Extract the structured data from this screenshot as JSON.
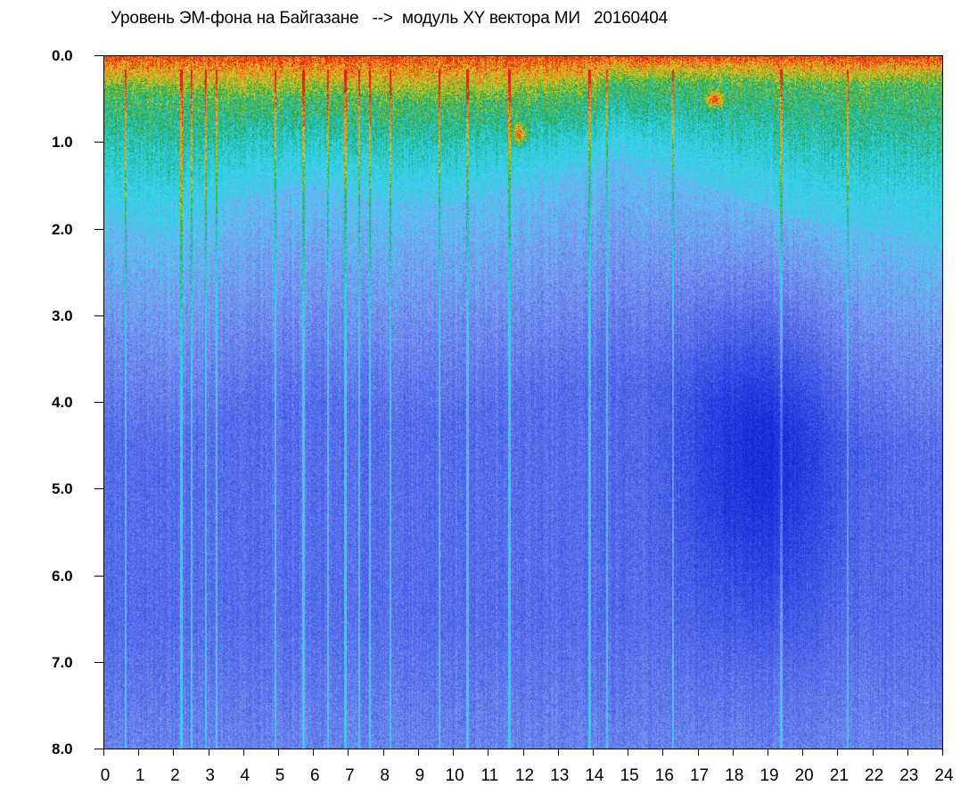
{
  "chart_data": {
    "type": "heatmap",
    "title": "Уровень ЭМ-фона на Байгазане   -->  модуль XY вектора МИ   20160404",
    "xlabel": "",
    "ylabel": "",
    "xlim": [
      0,
      24
    ],
    "ylim": [
      8.0,
      0.0
    ],
    "y_axis_inverted": true,
    "x_ticks": [
      "0",
      "1",
      "2",
      "3",
      "4",
      "5",
      "6",
      "7",
      "8",
      "9",
      "10",
      "11",
      "12",
      "13",
      "14",
      "15",
      "16",
      "17",
      "18",
      "19",
      "20",
      "21",
      "22",
      "23",
      "24"
    ],
    "y_ticks": [
      "0.0",
      "1.0",
      "2.0",
      "3.0",
      "4.0",
      "5.0",
      "6.0",
      "7.0",
      "8.0"
    ],
    "colormap": [
      "#0a1fd6",
      "#3246e6",
      "#6f86f0",
      "#39d8f0",
      "#2fb53c",
      "#e6dd2a",
      "#f08c1e",
      "#e32410"
    ],
    "grid": false,
    "legend": "none",
    "intensity_profile": {
      "description_hours": [
        0,
        2,
        4,
        6,
        8,
        10,
        12,
        14,
        14.4,
        16,
        18,
        20,
        22,
        24
      ],
      "band_top_depth": [
        0.4,
        0.45,
        0.5,
        0.45,
        0.5,
        0.55,
        0.5,
        0.45,
        0.3,
        0.3,
        0.3,
        0.35,
        0.35,
        0.35
      ],
      "cyan_depth": [
        1.9,
        2.1,
        1.6,
        1.5,
        1.7,
        1.7,
        1.5,
        1.3,
        1.2,
        1.3,
        1.6,
        1.9,
        2.0,
        2.2
      ]
    },
    "vertical_streaks_hours": [
      0.6,
      2.2,
      2.5,
      2.9,
      3.2,
      4.9,
      5.7,
      6.4,
      6.9,
      7.3,
      7.6,
      8.2,
      9.6,
      10.4,
      11.6,
      13.9,
      14.4,
      16.3,
      19.4,
      21.3
    ]
  }
}
